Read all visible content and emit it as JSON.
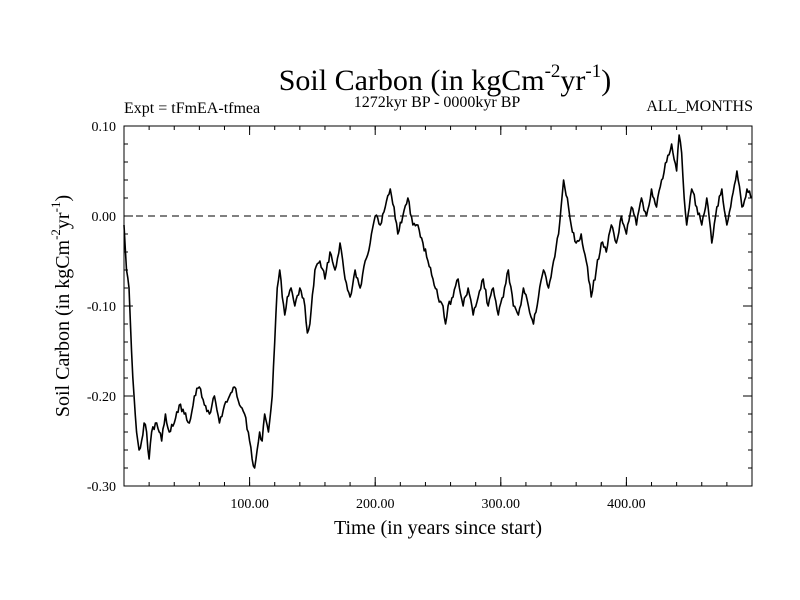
{
  "chart_data": {
    "type": "line",
    "title": {
      "main": "Soil Carbon (in kgCm",
      "sup1": "-2",
      "mid": "yr",
      "sup2": "-1",
      "end": ")"
    },
    "ylabel": {
      "main": "Soil Carbon (in kgCm",
      "sup1": "-2",
      "mid": "yr",
      "sup2": "-1",
      "end": ")"
    },
    "xlabel": "Time (in years since start)",
    "subtitle_left": "Expt = tFmEA-tfmea",
    "subtitle_center": "1272kyr BP - 0000kyr BP",
    "subtitle_right": "ALL_MONTHS",
    "xlim": [
      0,
      500
    ],
    "ylim": [
      -0.3,
      0.1
    ],
    "x_ticks": [
      100,
      200,
      300,
      400
    ],
    "x_tick_labels": [
      "100.00",
      "200.00",
      "300.00",
      "400.00"
    ],
    "y_ticks": [
      -0.3,
      -0.2,
      -0.1,
      0.0,
      0.1
    ],
    "y_tick_labels": [
      "-0.30",
      "-0.20",
      "-0.10",
      "0.00",
      "0.10"
    ],
    "reference_line": {
      "y": 0.0,
      "style": "dashed"
    },
    "series": [
      {
        "name": "Soil Carbon",
        "x": [
          0,
          2,
          4,
          6,
          8,
          10,
          12,
          14,
          16,
          18,
          20,
          22,
          25,
          28,
          30,
          33,
          36,
          40,
          44,
          48,
          52,
          56,
          60,
          64,
          68,
          72,
          76,
          80,
          84,
          88,
          92,
          96,
          100,
          102,
          104,
          106,
          108,
          110,
          112,
          115,
          118,
          120,
          122,
          124,
          126,
          128,
          130,
          133,
          136,
          140,
          144,
          146,
          148,
          152,
          156,
          160,
          164,
          168,
          172,
          176,
          180,
          184,
          188,
          192,
          196,
          200,
          204,
          208,
          212,
          215,
          218,
          222,
          226,
          230,
          234,
          238,
          242,
          246,
          250,
          254,
          256,
          258,
          262,
          266,
          270,
          274,
          278,
          282,
          286,
          290,
          294,
          298,
          302,
          306,
          310,
          314,
          318,
          322,
          326,
          330,
          334,
          338,
          342,
          346,
          350,
          353,
          356,
          360,
          364,
          368,
          372,
          376,
          380,
          384,
          388,
          392,
          396,
          400,
          404,
          408,
          412,
          416,
          420,
          424,
          428,
          432,
          436,
          440,
          442,
          444,
          446,
          448,
          452,
          456,
          460,
          464,
          468,
          472,
          476,
          480,
          484,
          488,
          492,
          496,
          500
        ],
        "values": [
          -0.01,
          -0.06,
          -0.08,
          -0.15,
          -0.2,
          -0.24,
          -0.26,
          -0.25,
          -0.23,
          -0.24,
          -0.27,
          -0.24,
          -0.23,
          -0.24,
          -0.25,
          -0.22,
          -0.24,
          -0.23,
          -0.21,
          -0.22,
          -0.23,
          -0.2,
          -0.19,
          -0.21,
          -0.22,
          -0.2,
          -0.23,
          -0.21,
          -0.2,
          -0.19,
          -0.21,
          -0.22,
          -0.25,
          -0.27,
          -0.28,
          -0.26,
          -0.24,
          -0.25,
          -0.22,
          -0.24,
          -0.2,
          -0.14,
          -0.08,
          -0.06,
          -0.09,
          -0.11,
          -0.09,
          -0.08,
          -0.1,
          -0.08,
          -0.1,
          -0.13,
          -0.12,
          -0.06,
          -0.05,
          -0.07,
          -0.04,
          -0.06,
          -0.03,
          -0.07,
          -0.09,
          -0.06,
          -0.08,
          -0.05,
          -0.03,
          0.0,
          -0.01,
          0.01,
          0.03,
          0.01,
          -0.02,
          0.0,
          0.02,
          -0.01,
          -0.01,
          -0.03,
          -0.05,
          -0.07,
          -0.09,
          -0.1,
          -0.12,
          -0.1,
          -0.09,
          -0.07,
          -0.1,
          -0.08,
          -0.11,
          -0.09,
          -0.07,
          -0.1,
          -0.08,
          -0.11,
          -0.09,
          -0.06,
          -0.1,
          -0.11,
          -0.08,
          -0.1,
          -0.12,
          -0.09,
          -0.06,
          -0.08,
          -0.05,
          -0.02,
          0.04,
          0.02,
          -0.01,
          -0.03,
          -0.02,
          -0.05,
          -0.09,
          -0.06,
          -0.03,
          -0.04,
          -0.01,
          -0.03,
          0.0,
          -0.02,
          0.01,
          -0.01,
          0.02,
          0.0,
          0.03,
          0.01,
          0.04,
          0.06,
          0.08,
          0.05,
          0.09,
          0.07,
          0.02,
          -0.01,
          0.03,
          0.01,
          -0.01,
          0.02,
          -0.03,
          0.01,
          0.03,
          -0.01,
          0.02,
          0.05,
          0.01,
          0.03,
          0.02
        ]
      }
    ]
  }
}
